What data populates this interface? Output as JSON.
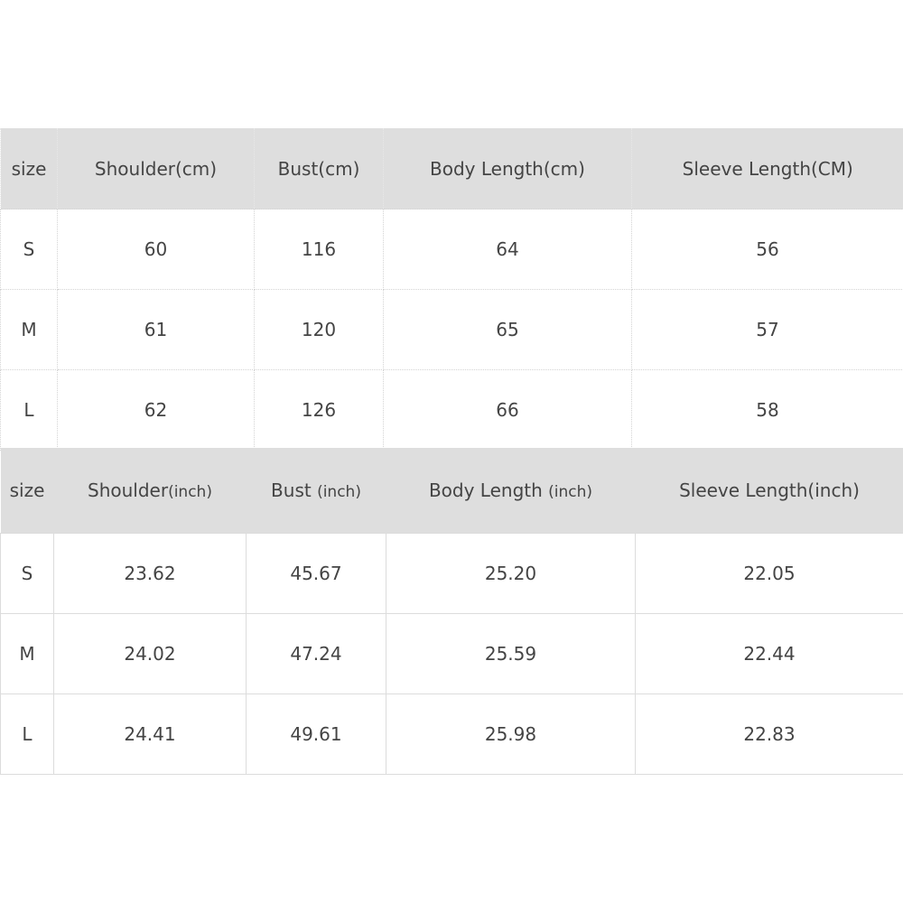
{
  "cm_table": {
    "headers": [
      "size",
      "Shoulder(cm)",
      "Bust(cm)",
      "Body Length(cm)",
      "Sleeve Length(CM)"
    ],
    "rows": [
      [
        "S",
        "60",
        "116",
        "64",
        "56"
      ],
      [
        "M",
        "61",
        "120",
        "65",
        "57"
      ],
      [
        "L",
        "62",
        "126",
        "66",
        "58"
      ]
    ]
  },
  "inch_table": {
    "headers": [
      {
        "main": "size",
        "unit": ""
      },
      {
        "main": "Shoulder",
        "unit": "(inch)"
      },
      {
        "main": "Bust ",
        "unit": "(inch)"
      },
      {
        "main": "Body Length ",
        "unit": "(inch)"
      },
      {
        "main": "Sleeve Length(inch)",
        "unit": ""
      }
    ],
    "rows": [
      [
        "S",
        "23.62",
        "45.67",
        "25.20",
        "22.05"
      ],
      [
        "M",
        "24.02",
        "47.24",
        "25.59",
        "22.44"
      ],
      [
        "L",
        "24.41",
        "49.61",
        "25.98",
        "22.83"
      ]
    ]
  },
  "colors": {
    "header_bg": "#dedede",
    "text": "#444444"
  }
}
